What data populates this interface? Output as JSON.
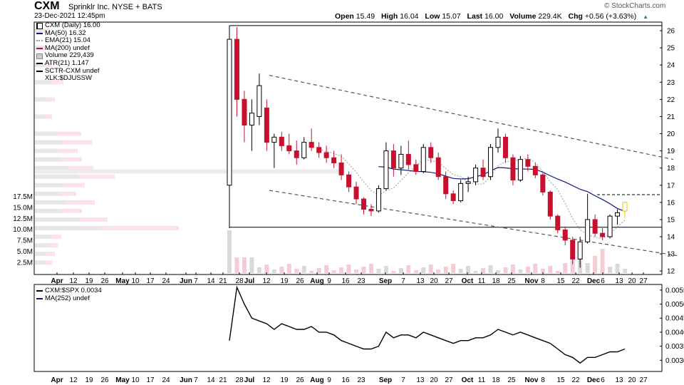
{
  "header": {
    "symbol": "CXM",
    "name": "Sprinklr Inc.  NYSE + BATS",
    "date": "23-Dec-2021 12:45pm",
    "brand": "© StockCharts.com",
    "stats": [
      {
        "label": "Open",
        "value": "15.49"
      },
      {
        "label": "High",
        "value": "16.04"
      },
      {
        "label": "Low",
        "value": "15.07"
      },
      {
        "label": "Last",
        "value": "16.00"
      },
      {
        "label": "Volume",
        "value": "229.4K"
      },
      {
        "label": "Chg",
        "value": "+0.56 (+3.63%)"
      }
    ]
  },
  "legend": [
    {
      "text": "CXM (Daily) 16.00",
      "color": "#000000",
      "style": "candle"
    },
    {
      "text": "MA(50) 16.32",
      "color": "#0b1a80",
      "style": "solid"
    },
    {
      "text": "EMA(21) 15.04",
      "color": "#999999",
      "style": "dotted"
    },
    {
      "text": "MA(200) undef",
      "color": "#c8102e",
      "style": "solid"
    },
    {
      "text": "Volume 229,439",
      "color": "#cccccc",
      "style": "box"
    },
    {
      "text": "ATR(21) 1.147",
      "color": "#000000",
      "style": "solid"
    },
    {
      "text": "SCTR-CXM undef",
      "color": "#000000",
      "style": "solid"
    },
    {
      "text": "XLK:$DJUSSW",
      "color": "#000000",
      "style": "none"
    }
  ],
  "indicator_legend": [
    {
      "text": "CXM:$SPX 0.0034",
      "color": "#000000"
    },
    {
      "text": "MA(252) undef",
      "color": "#0b1a80"
    }
  ],
  "colors": {
    "up": "#000000",
    "down": "#c8102e",
    "last": "#f5c400",
    "ma50": "#0b1a80",
    "ema21": "#aaaaaa"
  },
  "chart_data": [
    {
      "type": "candlestick",
      "title": "CXM Sprinklr Inc.  NYSE + BATS",
      "x_tick_labels": [
        "Apr",
        "12",
        "19",
        "26",
        "May",
        "10",
        "17",
        "24",
        "Jun",
        "7",
        "14",
        "21",
        "28",
        "Jul",
        "12",
        "19",
        "26",
        "Aug",
        "9",
        "16",
        "23",
        "Sep",
        "7",
        "13",
        "20",
        "27",
        "Oct",
        "11",
        "18",
        "25",
        "Nov",
        "8",
        "15",
        "22",
        "Dec",
        "6",
        "13",
        "20",
        "27"
      ],
      "y_axis": {
        "ticks": [
          12,
          13,
          14,
          15,
          16,
          17,
          18,
          19,
          20,
          21,
          22,
          23,
          24,
          25,
          26
        ],
        "ylim": [
          11.8,
          26.5
        ]
      },
      "volume_axis_ticks": [
        "17.5M",
        "15.0M",
        "12.5M",
        "10.0M",
        "7.5M",
        "5.0M",
        "2.5M"
      ],
      "ohlc_approx": [
        [
          17.0,
          26.3,
          14.5,
          25.5
        ],
        [
          25.5,
          26.2,
          21.0,
          22.0
        ],
        [
          22.0,
          22.5,
          19.5,
          20.5
        ],
        [
          20.5,
          22.0,
          19.0,
          21.2
        ],
        [
          21.0,
          23.5,
          20.5,
          22.8
        ],
        [
          21.5,
          22.0,
          19.0,
          19.5
        ],
        [
          19.5,
          20.0,
          18.0,
          19.8
        ],
        [
          19.8,
          20.1,
          19.0,
          19.3
        ],
        [
          19.3,
          20.0,
          18.8,
          19.0
        ],
        [
          19.0,
          19.6,
          18.2,
          18.6
        ],
        [
          18.6,
          19.8,
          18.5,
          19.5
        ],
        [
          19.5,
          20.3,
          19.0,
          19.2
        ],
        [
          19.2,
          19.5,
          18.6,
          18.9
        ],
        [
          18.9,
          19.3,
          18.3,
          18.6
        ],
        [
          18.6,
          19.0,
          18.0,
          18.3
        ],
        [
          18.3,
          18.8,
          17.3,
          17.6
        ],
        [
          17.6,
          17.8,
          16.6,
          16.9
        ],
        [
          16.9,
          17.2,
          15.9,
          16.2
        ],
        [
          16.2,
          16.3,
          15.3,
          15.6
        ],
        [
          15.6,
          15.9,
          15.2,
          15.5
        ],
        [
          15.5,
          17.0,
          15.4,
          16.8
        ],
        [
          16.8,
          19.5,
          16.7,
          19.0
        ],
        [
          19.0,
          19.4,
          17.5,
          18.0
        ],
        [
          18.0,
          19.3,
          17.6,
          18.8
        ],
        [
          18.8,
          19.6,
          17.9,
          18.2
        ],
        [
          18.2,
          18.5,
          17.6,
          17.8
        ],
        [
          17.8,
          19.4,
          17.7,
          19.2
        ],
        [
          19.2,
          19.5,
          18.3,
          18.6
        ],
        [
          18.6,
          18.9,
          17.3,
          17.5
        ],
        [
          17.5,
          17.8,
          16.2,
          16.5
        ],
        [
          16.5,
          16.7,
          15.9,
          16.1
        ],
        [
          16.1,
          17.3,
          16.0,
          17.1
        ],
        [
          17.1,
          17.5,
          16.6,
          17.2
        ],
        [
          17.2,
          18.2,
          17.0,
          18.0
        ],
        [
          18.0,
          18.5,
          17.3,
          17.5
        ],
        [
          17.5,
          19.4,
          17.3,
          19.2
        ],
        [
          19.2,
          20.3,
          18.9,
          19.8
        ],
        [
          19.8,
          20.0,
          18.3,
          18.6
        ],
        [
          18.6,
          18.8,
          17.0,
          17.3
        ],
        [
          17.3,
          18.7,
          17.2,
          18.5
        ],
        [
          18.5,
          18.8,
          17.8,
          18.1
        ],
        [
          18.1,
          18.3,
          17.4,
          17.6
        ],
        [
          17.6,
          17.7,
          16.4,
          16.6
        ],
        [
          16.6,
          16.7,
          15.0,
          15.2
        ],
        [
          15.2,
          15.3,
          14.2,
          14.4
        ],
        [
          14.4,
          14.6,
          13.5,
          13.8
        ],
        [
          13.8,
          14.0,
          12.4,
          12.7
        ],
        [
          12.7,
          14.0,
          12.2,
          13.7
        ],
        [
          13.7,
          16.5,
          13.6,
          15.0
        ],
        [
          15.0,
          15.3,
          14.0,
          14.2
        ],
        [
          14.2,
          14.5,
          13.8,
          14.0
        ],
        [
          14.0,
          15.3,
          13.9,
          15.2
        ],
        [
          15.2,
          15.6,
          14.7,
          15.4
        ],
        [
          15.49,
          16.04,
          15.07,
          16.0
        ]
      ],
      "annotations": [
        "horizontal support ≈ 14.55",
        "descending channel",
        "dashed resistance ≈ 16.45"
      ]
    },
    {
      "type": "line",
      "title": "CXM:$SPX 0.0034",
      "series": [
        {
          "name": "CXM:$SPX",
          "values_approx": [
            0.0037,
            0.0056,
            0.005,
            0.0045,
            0.0044,
            0.0043,
            0.0041,
            0.0043,
            0.0042,
            0.0041,
            0.0041,
            0.0042,
            0.004,
            0.004,
            0.0039,
            0.0037,
            0.0036,
            0.0035,
            0.0034,
            0.0034,
            0.0035,
            0.004,
            0.0038,
            0.0039,
            0.0039,
            0.0038,
            0.004,
            0.0039,
            0.0038,
            0.0037,
            0.0036,
            0.0037,
            0.0037,
            0.0038,
            0.0038,
            0.0039,
            0.0041,
            0.004,
            0.0039,
            0.004,
            0.0039,
            0.0038,
            0.0037,
            0.0036,
            0.0034,
            0.0032,
            0.0031,
            0.0029,
            0.0031,
            0.0031,
            0.0032,
            0.0033,
            0.0033,
            0.0034
          ]
        }
      ],
      "y_axis": {
        "ticks": [
          "0.0030",
          "0.0035",
          "0.0040",
          "0.0045",
          "0.0050",
          "0.0055"
        ]
      }
    }
  ]
}
